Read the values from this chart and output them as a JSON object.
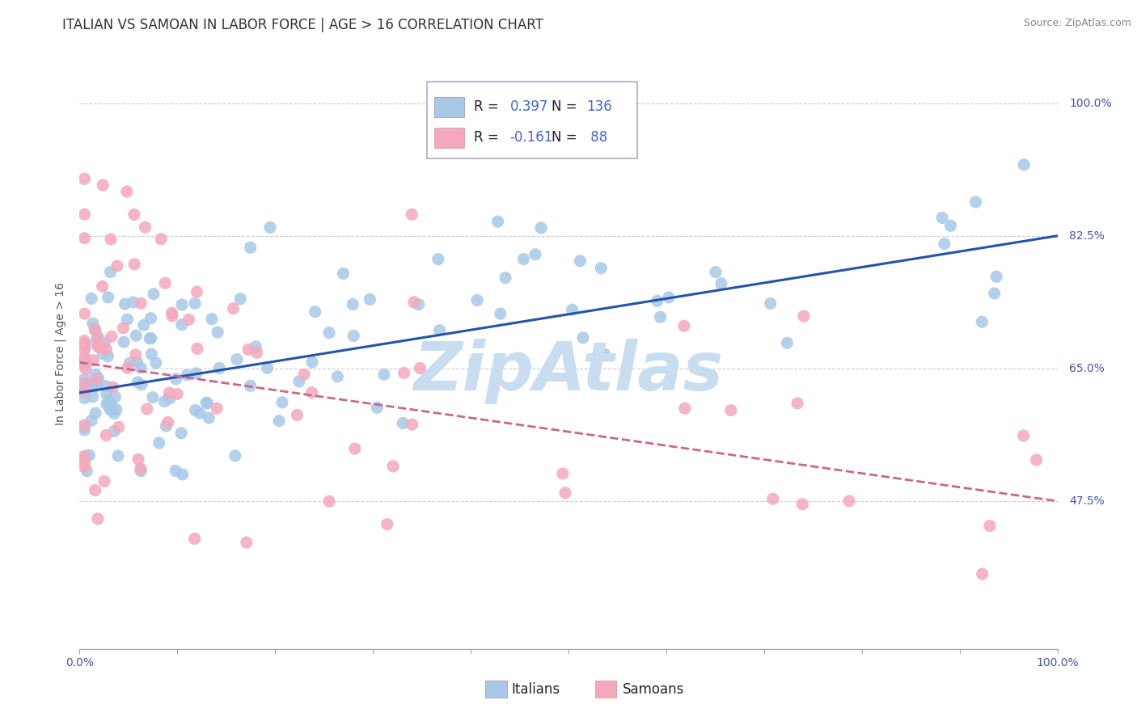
{
  "title": "ITALIAN VS SAMOAN IN LABOR FORCE | AGE > 16 CORRELATION CHART",
  "source": "Source: ZipAtlas.com",
  "ylabel": "In Labor Force | Age > 16",
  "ytick_labels": [
    "47.5%",
    "65.0%",
    "82.5%",
    "100.0%"
  ],
  "ytick_values": [
    0.475,
    0.65,
    0.825,
    1.0
  ],
  "xlim": [
    0.0,
    1.0
  ],
  "ylim": [
    0.28,
    1.06
  ],
  "legend_label1": "Italians",
  "legend_label2": "Samoans",
  "italian_color": "#a8c8e8",
  "samoan_color": "#f4a8bc",
  "italian_line_color": "#2255aa",
  "samoan_line_color": "#cc6688",
  "watermark": "ZipAtlas",
  "watermark_color": "#c8ddf0",
  "background_color": "#ffffff",
  "grid_color": "#cccccc",
  "italian_trend_x": [
    0.0,
    1.0
  ],
  "italian_trend_y": [
    0.618,
    0.825
  ],
  "samoan_trend_x": [
    0.0,
    1.0
  ],
  "samoan_trend_y": [
    0.658,
    0.475
  ],
  "title_fontsize": 12,
  "source_fontsize": 9,
  "axis_label_fontsize": 10,
  "tick_fontsize": 10,
  "legend_fontsize": 12,
  "watermark_fontsize": 60
}
